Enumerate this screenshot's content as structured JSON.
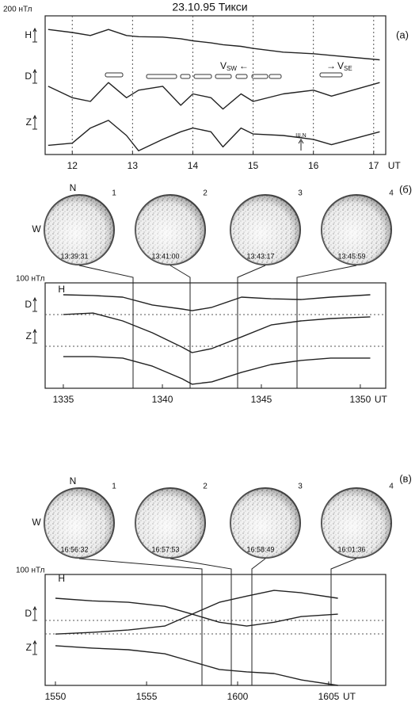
{
  "chart_data": [
    {
      "type": "line",
      "title": "23.10.95   Тикси",
      "scale_label": "200 нТл",
      "panel_label": "(а)",
      "x_unit": "UT",
      "trace_labels": [
        "H",
        "D",
        "Z"
      ],
      "annotations": [
        {
          "main": "V",
          "sub": "SW",
          "arrow": "←"
        },
        {
          "arrow": "→",
          "main": "V",
          "sub": "SE"
        },
        {
          "main": "Ш,N"
        }
      ],
      "x": [
        11.6,
        12,
        12.3,
        12.6,
        12.9,
        13.1,
        13.5,
        13.8,
        14,
        14.3,
        14.5,
        14.8,
        15,
        15.5,
        16,
        16.3,
        17.1
      ],
      "series": [
        {
          "color": "#222",
          "values": [
            902,
            880,
            858,
            902,
            858,
            850,
            847,
            835,
            820,
            805,
            792,
            780,
            765,
            738,
            727,
            715,
            683
          ]
        },
        {
          "color": "#222",
          "values": [
            492,
            410,
            383,
            519,
            410,
            464,
            492,
            355,
            437,
            410,
            328,
            437,
            383,
            437,
            464,
            421,
            519
          ]
        },
        {
          "color": "#222",
          "values": [
            66,
            82,
            191,
            246,
            137,
            27,
            109,
            164,
            191,
            164,
            55,
            191,
            148,
            137,
            109,
            71,
            164
          ]
        }
      ],
      "xlim": [
        11.55,
        17.2
      ],
      "xticks": [
        12,
        13,
        14,
        15,
        16,
        17
      ],
      "ylim": [
        0,
        1000
      ],
      "grid": true
    },
    {
      "type": "line",
      "scale_label": "100 нТл",
      "panel_label": "(б)",
      "x_unit": "UT",
      "trace_labels": [
        "H",
        "D",
        "Z"
      ],
      "compass": [
        "N",
        "W"
      ],
      "images": [
        {
          "index": "1",
          "time": "13:39:31"
        },
        {
          "index": "2",
          "time": "13:41:00"
        },
        {
          "index": "3",
          "time": "13:43:17"
        },
        {
          "index": "4",
          "time": "13:45:59"
        }
      ],
      "x": [
        13.5833,
        13.6083,
        13.6333,
        13.6583,
        13.6833,
        13.6917,
        13.7083,
        13.7333,
        13.7583,
        13.7833,
        13.8083,
        13.8417
      ],
      "series": [
        {
          "color": "#222",
          "values": [
            393,
            390,
            383,
            350,
            333,
            326,
            340,
            383,
            376,
            373,
            383,
            393
          ]
        },
        {
          "color": "#222",
          "values": [
            310,
            316,
            283,
            233,
            173,
            150,
            167,
            216,
            266,
            283,
            293,
            300
          ]
        },
        {
          "color": "#222",
          "values": [
            133,
            133,
            127,
            93,
            40,
            17,
            27,
            67,
            100,
            117,
            127,
            127
          ]
        }
      ],
      "xlim": [
        13.568,
        13.8547
      ],
      "xticks": [
        {
          "value": 13.5833,
          "label": "1335"
        },
        {
          "value": 13.6667,
          "label": "1340"
        },
        {
          "value": 13.75,
          "label": "1345"
        },
        {
          "value": 13.8333,
          "label": "1350"
        }
      ],
      "ylim": [
        0,
        443
      ]
    },
    {
      "type": "line",
      "scale_label": "100 нТл",
      "panel_label": "(в)",
      "x_unit": "UT",
      "trace_labels": [
        "H",
        "D",
        "Z"
      ],
      "compass": [
        "N",
        "W"
      ],
      "images": [
        {
          "index": "1",
          "time": "16:56:32"
        },
        {
          "index": "2",
          "time": "16:57:53"
        },
        {
          "index": "3",
          "time": "16:58:49"
        },
        {
          "index": "4",
          "time": "16:01:36"
        }
      ],
      "x": [
        15.8333,
        15.8667,
        15.9,
        15.9333,
        15.9583,
        15.9833,
        16.0083,
        16.0333,
        16.0583,
        16.0917
      ],
      "series": [
        {
          "color": "#222",
          "values": [
            367,
            356,
            350,
            333,
            300,
            266,
            250,
            266,
            290,
            300
          ]
        },
        {
          "color": "#222",
          "values": [
            216,
            223,
            233,
            250,
            300,
            350,
            376,
            400,
            390,
            367
          ]
        },
        {
          "color": "#222",
          "values": [
            167,
            157,
            150,
            133,
            100,
            67,
            57,
            50,
            23,
            0
          ]
        }
      ],
      "xlim": [
        15.8239,
        16.1355
      ],
      "xticks": [
        {
          "value": 15.8333,
          "label": "1550"
        },
        {
          "value": 15.9167,
          "label": "1555"
        },
        {
          "value": 16.0,
          "label": "1600"
        },
        {
          "value": 16.0833,
          "label": "1605"
        }
      ],
      "ylim": [
        0,
        467
      ]
    }
  ]
}
